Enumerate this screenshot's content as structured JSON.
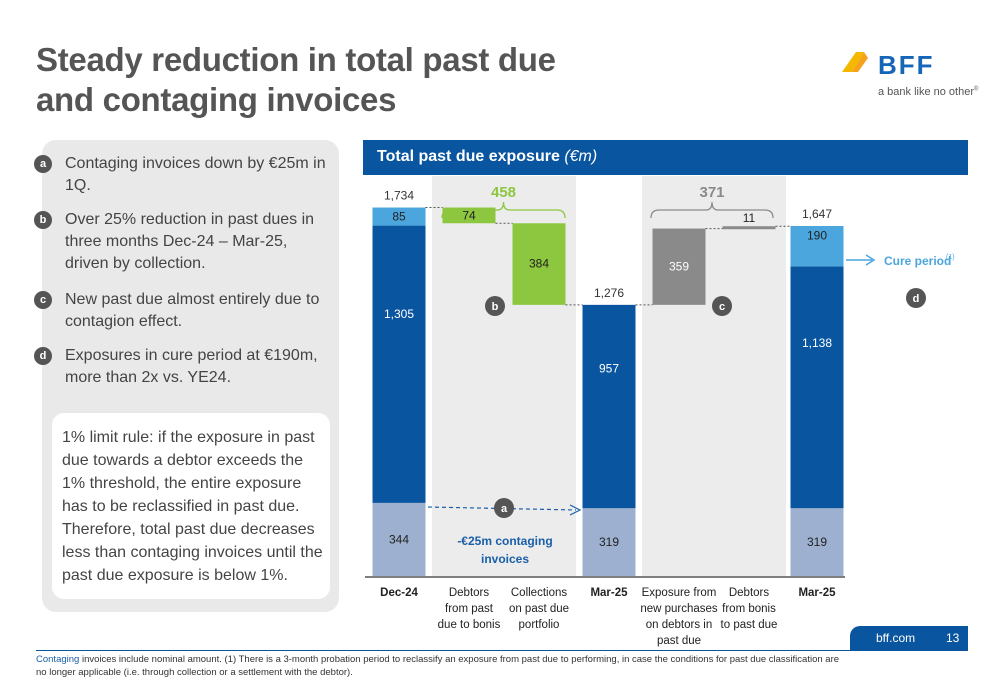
{
  "slide": {
    "title_line1": "Steady reduction in total past due",
    "title_line2": "and contaging invoices",
    "logo_text": "BFF",
    "logo_tagline": "a bank like no other",
    "logo_mark": "®"
  },
  "points": [
    {
      "badge": "a",
      "text": "Contaging invoices down by €25m in 1Q."
    },
    {
      "badge": "b",
      "text": "Over 25% reduction in past dues in three months Dec-24 – Mar-25, driven by collection."
    },
    {
      "badge": "c",
      "text": "New past due almost entirely due to contagion effect."
    },
    {
      "badge": "d",
      "text": "Exposures in cure period at €190m, more than 2x vs. YE24."
    }
  ],
  "rule_box": "1% limit rule: if the exposure in past due towards a debtor exceeds the 1% threshold, the entire exposure has to be reclassified in past due. Therefore, total past due decreases less than contaging invoices until the past due exposure is below 1%.",
  "chart_header": {
    "title": "Total past due exposure",
    "unit": "(€m)"
  },
  "chart_data": {
    "type": "bar",
    "title": "Total past due exposure (€m)",
    "categories": [
      "Dec-24",
      "Debtors from past due to bonis",
      "Collections on past due portfolio",
      "Mar-25",
      "Exposure from new purchases on debtors in past due",
      "Debtors from bonis to past due",
      "Mar-25"
    ],
    "bars": [
      {
        "category": "Dec-24",
        "kind": "total",
        "segments": [
          {
            "value": 344,
            "color": "#9db0cf"
          },
          {
            "value": 1305,
            "color": "#0a55a0"
          },
          {
            "value": 85,
            "color": "#4aa6dd"
          }
        ],
        "total": 1734
      },
      {
        "category": "Debtors from past due to bonis",
        "kind": "decrease",
        "from": 1734,
        "to": 1660,
        "value": 74,
        "color": "#8dc63f"
      },
      {
        "category": "Collections on past due portfolio",
        "kind": "decrease",
        "from": 1660,
        "to": 1276,
        "value": 384,
        "color": "#8dc63f"
      },
      {
        "category": "Mar-25",
        "kind": "total",
        "segments": [
          {
            "value": 319,
            "color": "#9db0cf"
          },
          {
            "value": 957,
            "color": "#0a55a0"
          }
        ],
        "total": 1276
      },
      {
        "category": "Exposure from new purchases on debtors in past due",
        "kind": "increase",
        "from": 1276,
        "to": 1635,
        "value": 359,
        "color": "#8a8a8a"
      },
      {
        "category": "Debtors from bonis to past due",
        "kind": "increase",
        "from": 1635,
        "to": 1646,
        "value": 11,
        "color": "#8a8a8a"
      },
      {
        "category": "Mar-25",
        "kind": "total",
        "segments": [
          {
            "value": 319,
            "color": "#9db0cf"
          },
          {
            "value": 1138,
            "color": "#0a55a0"
          },
          {
            "value": 190,
            "color": "#4aa6dd"
          }
        ],
        "total": 1647
      }
    ],
    "ylim": [
      0,
      2100
    ],
    "group_totals": [
      {
        "value": "458",
        "color": "#8dc63f"
      },
      {
        "value": "371",
        "color": "#8a8a8a"
      }
    ],
    "annotations": {
      "contaging": "-€25m contaging invoices",
      "cure_period": "Cure period",
      "cure_sup": "(1)",
      "badges": [
        "a",
        "b",
        "c",
        "d"
      ]
    }
  },
  "axis_labels": [
    [
      "Dec-24"
    ],
    [
      "Debtors",
      "from past",
      "due to bonis"
    ],
    [
      "Collections",
      "on past due",
      "portfolio"
    ],
    [
      "Mar-25"
    ],
    [
      "Exposure from",
      "new purchases",
      "on debtors in",
      "past due"
    ],
    [
      "Debtors",
      "from bonis",
      "to past due"
    ],
    [
      "Mar-25"
    ]
  ],
  "footer": {
    "site": "bff.com",
    "page": "13"
  },
  "footnote": {
    "highlight": "Contaging",
    "text": " invoices include nominal amount.   (1) There is a 3-month probation period to reclassify an exposure from past due to performing, in case the conditions for past due classification are no longer applicable (i.e. through collection or a settlement with the debtor)."
  },
  "colors": {
    "brand_blue": "#0a55a0",
    "light_blue": "#4aa6dd",
    "pale_blue": "#9db0cf",
    "green": "#8dc63f",
    "grey": "#8a8a8a",
    "logo_yellow": "#f5b800",
    "logo_blue": "#1565b8"
  }
}
